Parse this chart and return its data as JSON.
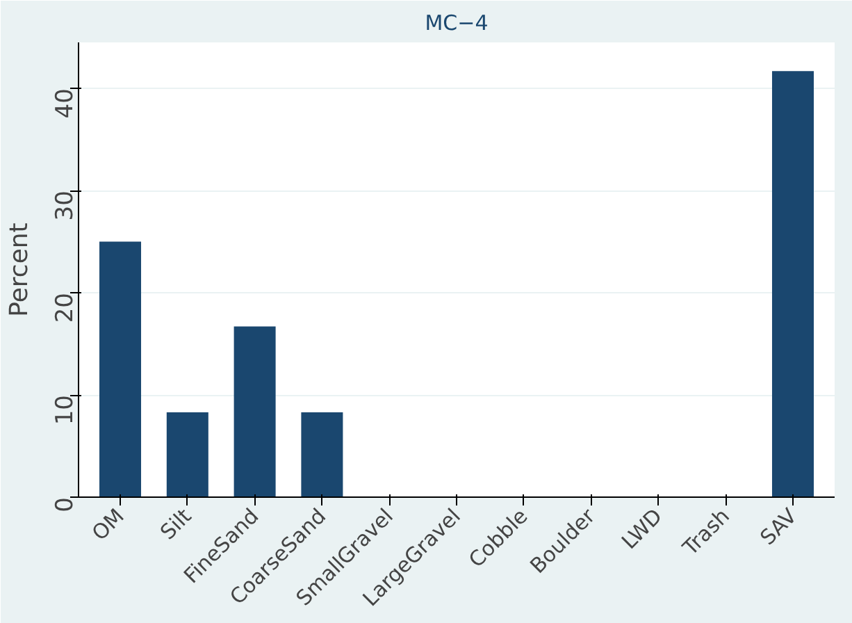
{
  "chart_data": {
    "type": "bar",
    "title": "MC−4",
    "ylabel": "Percent",
    "categories": [
      "OM",
      "Silt",
      "FineSand",
      "CoarseSand",
      "SmallGravel",
      "LargeGravel",
      "Cobble",
      "Boulder",
      "LWD",
      "Trash",
      "SAV"
    ],
    "values": [
      25,
      8.3,
      16.7,
      8.3,
      0,
      0,
      0,
      0,
      0,
      0,
      41.7
    ],
    "color": "#1a476f",
    "ylim": [
      0,
      44.5
    ],
    "yticks": [
      0,
      10,
      20,
      30,
      40
    ],
    "grid": "y"
  }
}
